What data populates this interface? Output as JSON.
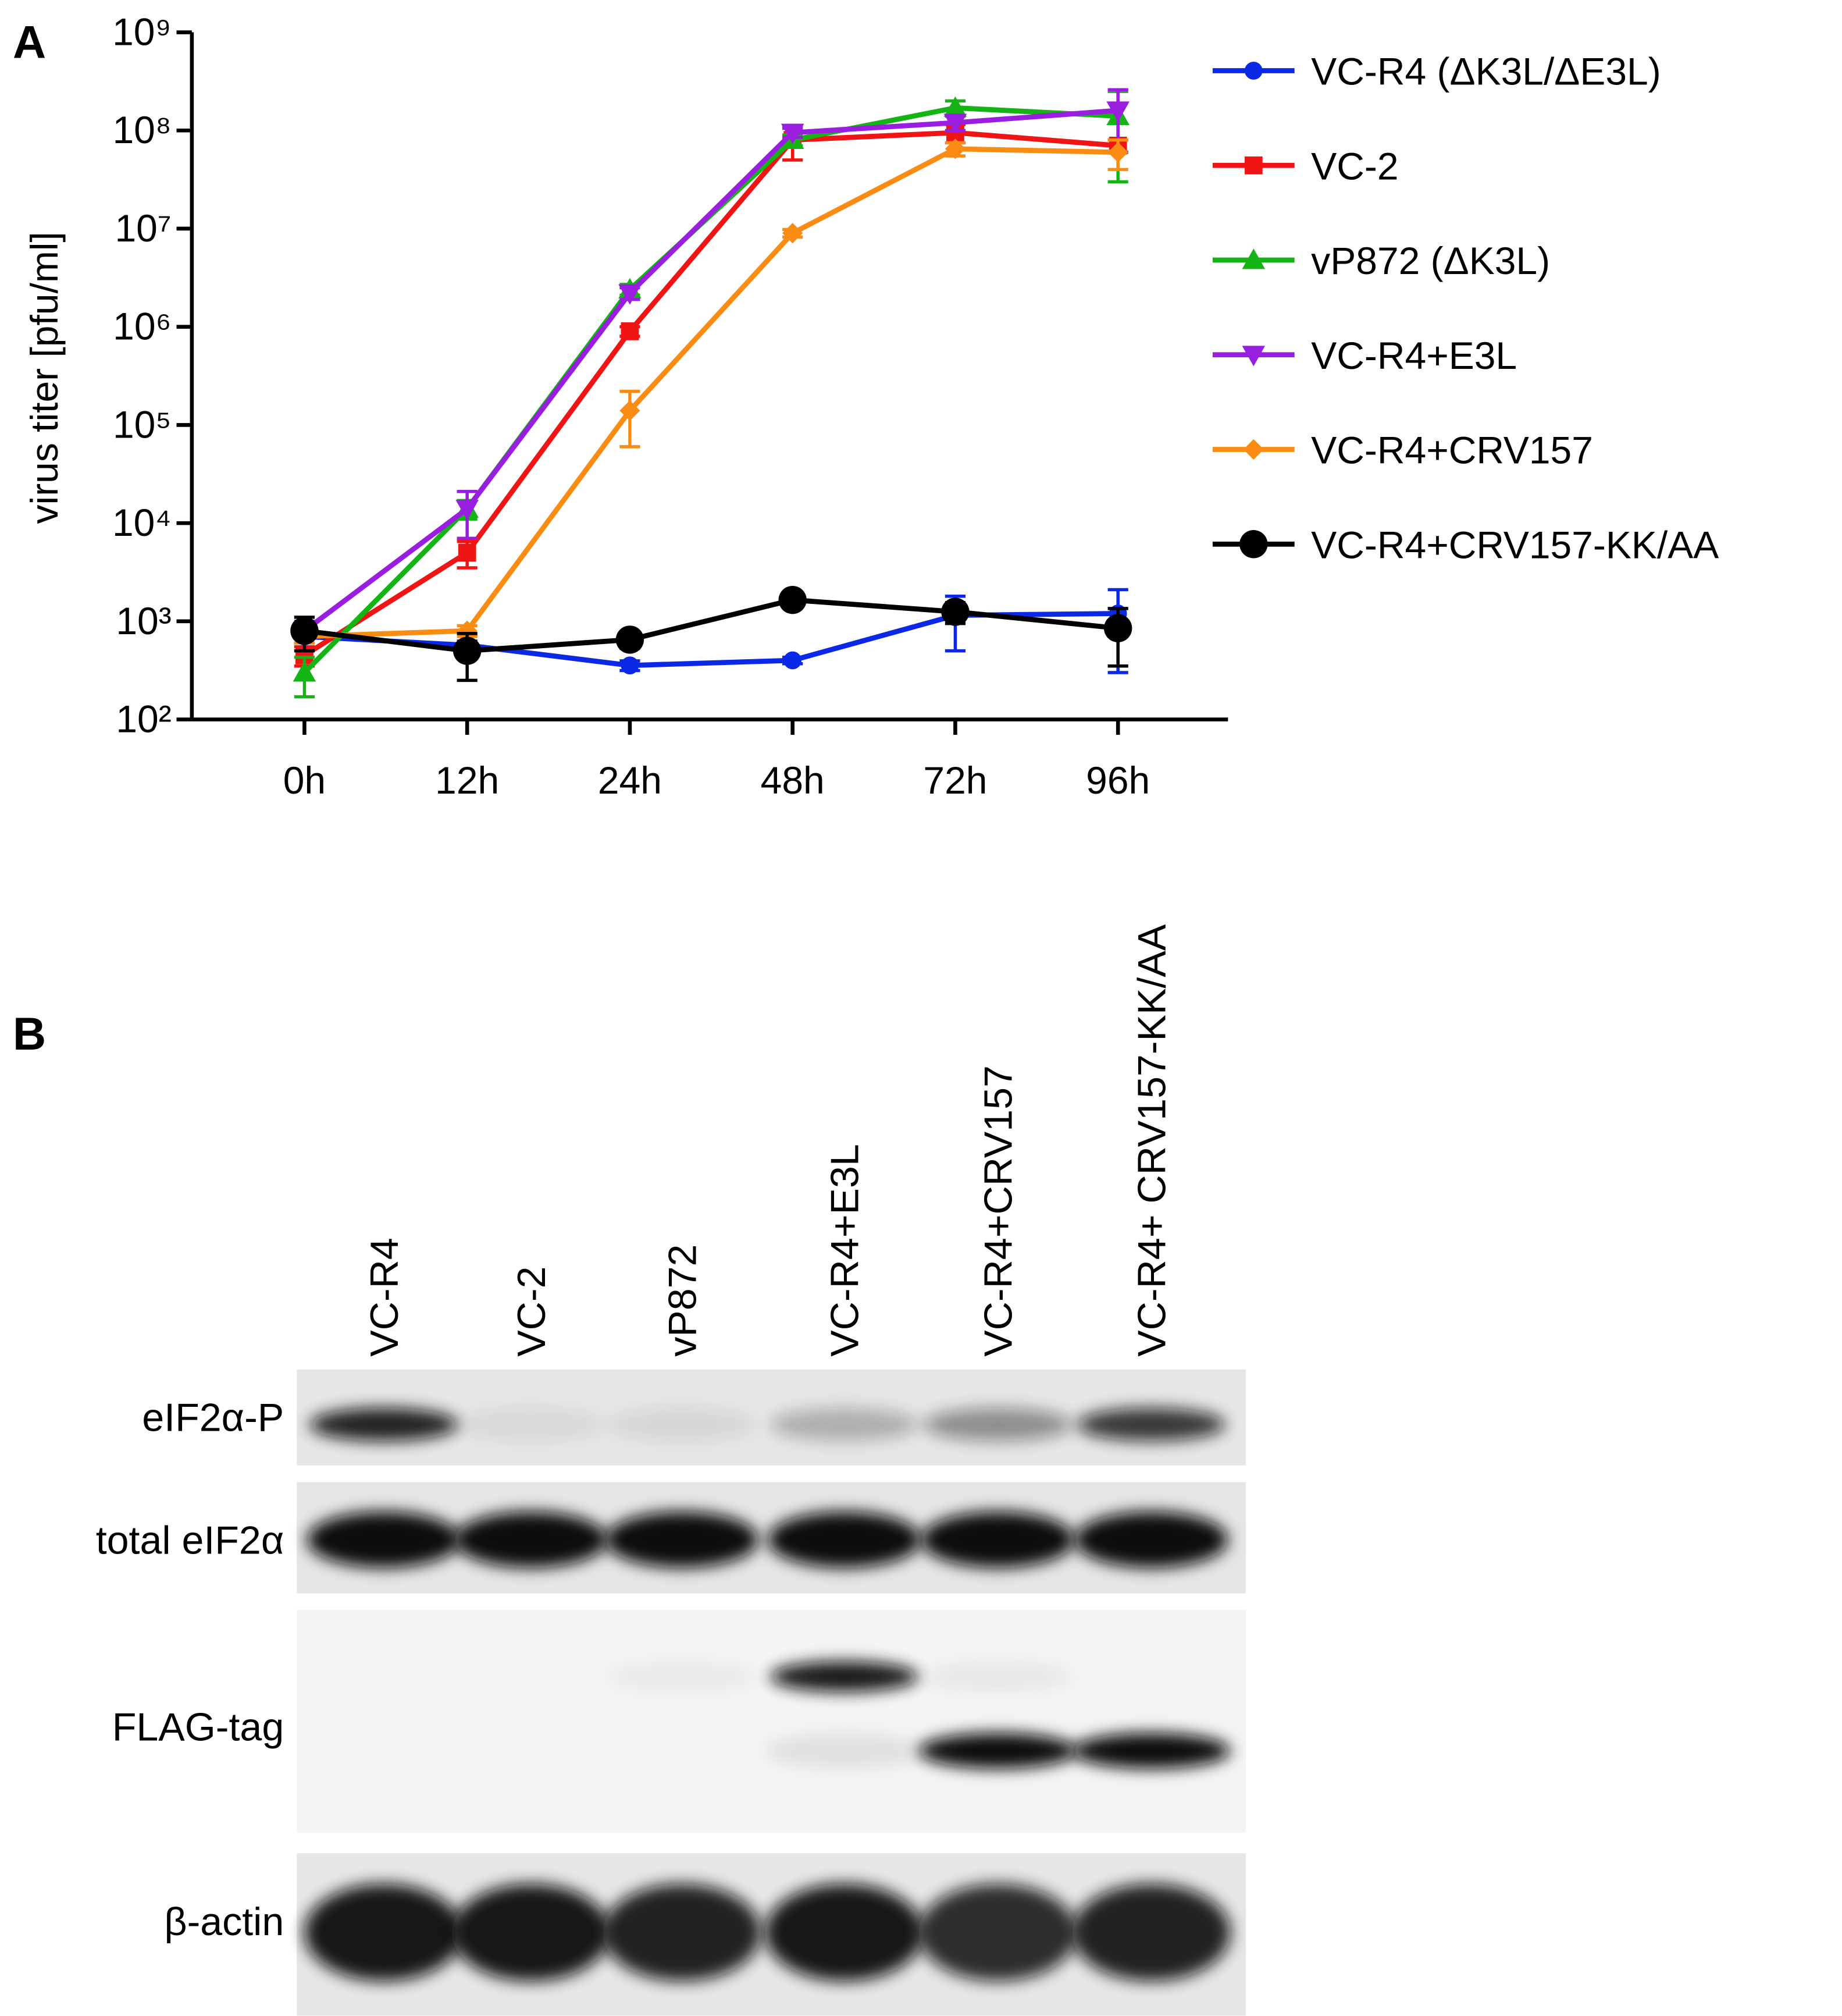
{
  "chart_data": {
    "type": "line",
    "label": "A",
    "y_label": "virus titer [pfu/ml]",
    "y_log": true,
    "categories": [
      "0h",
      "12h",
      "24h",
      "48h",
      "72h",
      "96h"
    ],
    "ylim": [
      100,
      1000000000
    ],
    "yticks": [
      {
        "value": 100,
        "label": "10²"
      },
      {
        "value": 1000,
        "label": "10³"
      },
      {
        "value": 10000,
        "label": "10⁴"
      },
      {
        "value": 100000,
        "label": "10⁵"
      },
      {
        "value": 1000000,
        "label": "10⁶"
      },
      {
        "value": 10000000,
        "label": "10⁷"
      },
      {
        "value": 100000000,
        "label": "10⁸"
      },
      {
        "value": 1000000000,
        "label": "10⁹"
      }
    ],
    "series": [
      {
        "name": "VC-R4 (ΔK3L/ΔE3L)",
        "color": "#0a28e6",
        "marker": "circle",
        "values": [
          700,
          570,
          355,
          400,
          1150,
          1200
        ],
        "errors": [
          100,
          60,
          40,
          30,
          650,
          900
        ]
      },
      {
        "name": "VC-2",
        "color": "#f01414",
        "marker": "square",
        "values": [
          450,
          5000,
          900000,
          80000000,
          95000000,
          70000000
        ],
        "errors": [
          100,
          1500,
          100000,
          30000000,
          20000000,
          10000000
        ]
      },
      {
        "name": "vP872 (ΔK3L)",
        "color": "#14b414",
        "marker": "triangle-up",
        "values": [
          300,
          14000,
          2400000,
          80000000,
          170000000,
          140000000
        ],
        "errors": [
          130,
          3000,
          300000,
          10000000,
          30000000,
          110000000
        ]
      },
      {
        "name": "VC-R4+E3L",
        "color": "#9a1ee0",
        "marker": "triangle-down",
        "values": [
          800,
          14000,
          2200000,
          95000000,
          120000000,
          160000000
        ],
        "errors": [
          200,
          7000,
          300000,
          10000000,
          20000000,
          100000000
        ]
      },
      {
        "name": "VC-R4+CRV157",
        "color": "#fa8c14",
        "marker": "diamond",
        "values": [
          700,
          800,
          140000,
          9000000,
          65000000,
          60000000
        ],
        "errors": [
          100,
          100,
          80000,
          800000,
          10000000,
          20000000
        ]
      },
      {
        "name": "VC-R4+CRV157-KK/AA",
        "color": "#000000",
        "marker": "big-circle",
        "values": [
          800,
          500,
          650,
          1650,
          1250,
          850
        ],
        "errors": [
          300,
          250,
          120,
          150,
          300,
          500
        ]
      }
    ]
  },
  "blot": {
    "label": "B",
    "lanes": [
      "VC-R4",
      "VC-2",
      "vP872",
      "VC-R4+E3L",
      "VC-R4+CRV157",
      "VC-R4+ CRV157-KK/AA"
    ],
    "rows": [
      "eIF2α-P",
      "total eIF2α",
      "FLAG-tag",
      "β-actin"
    ]
  }
}
